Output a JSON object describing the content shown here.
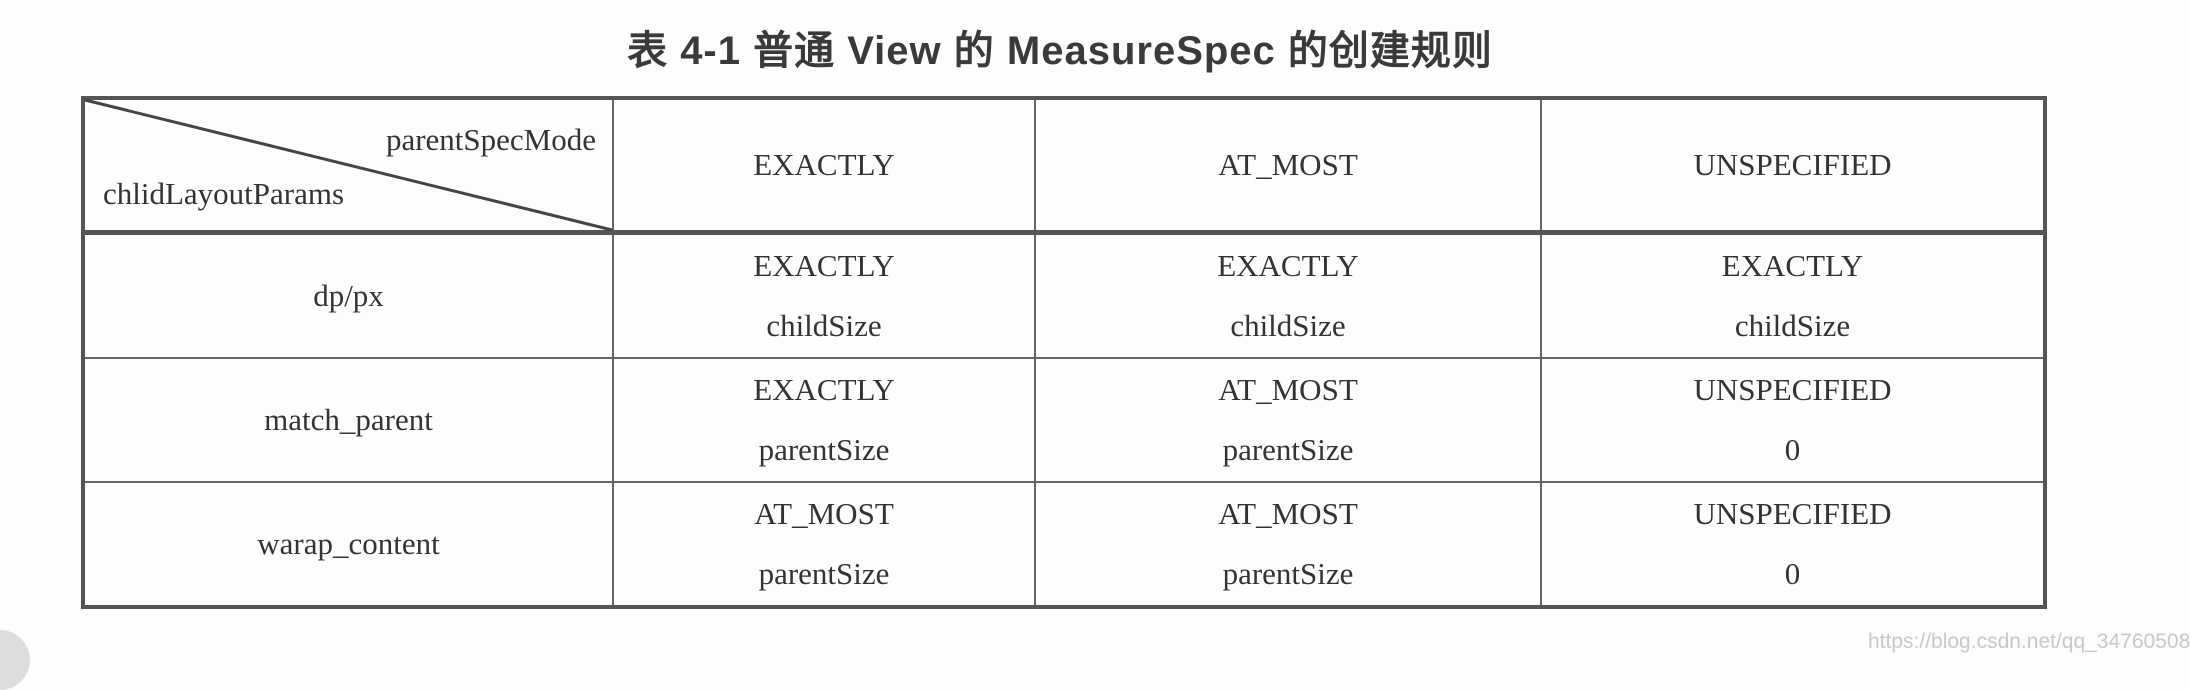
{
  "title": "表 4-1   普通 View 的 MeasureSpec 的创建规则",
  "header": {
    "row_label": "chlidLayoutParams",
    "col_label": "parentSpecMode",
    "columns": [
      "EXACTLY",
      "AT_MOST",
      "UNSPECIFIED"
    ]
  },
  "rows": [
    {
      "label": "dp/px",
      "cells": [
        [
          "EXACTLY",
          "childSize"
        ],
        [
          "EXACTLY",
          "childSize"
        ],
        [
          "EXACTLY",
          "childSize"
        ]
      ]
    },
    {
      "label": "match_parent",
      "cells": [
        [
          "EXACTLY",
          "parentSize"
        ],
        [
          "AT_MOST",
          "parentSize"
        ],
        [
          "UNSPECIFIED",
          "0"
        ]
      ]
    },
    {
      "label": "warap_content",
      "cells": [
        [
          "AT_MOST",
          "parentSize"
        ],
        [
          "AT_MOST",
          "parentSize"
        ],
        [
          "UNSPECIFIED",
          "0"
        ]
      ]
    }
  ],
  "watermark": "https://blog.csdn.net/qq_34760508"
}
